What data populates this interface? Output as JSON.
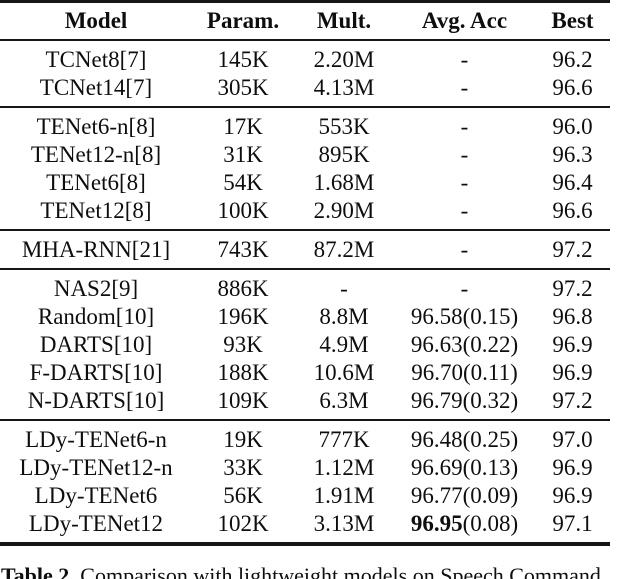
{
  "table": {
    "headers": [
      "Model",
      "Param.",
      "Mult.",
      "Avg. Acc",
      "Best"
    ],
    "groups": [
      {
        "rows": [
          {
            "cells": [
              "TCNet8[7]",
              "145K",
              "2.20M",
              "-",
              "96.2"
            ]
          },
          {
            "cells": [
              "TCNet14[7]",
              "305K",
              "4.13M",
              "-",
              "96.6"
            ]
          }
        ]
      },
      {
        "rows": [
          {
            "cells": [
              "TENet6-n[8]",
              "17K",
              "553K",
              "-",
              "96.0"
            ]
          },
          {
            "cells": [
              "TENet12-n[8]",
              "31K",
              "895K",
              "-",
              "96.3"
            ]
          },
          {
            "cells": [
              "TENet6[8]",
              "54K",
              "1.68M",
              "-",
              "96.4"
            ]
          },
          {
            "cells": [
              "TENet12[8]",
              "100K",
              "2.90M",
              "-",
              "96.6"
            ]
          }
        ]
      },
      {
        "rows": [
          {
            "cells": [
              "MHA-RNN[21]",
              "743K",
              "87.2M",
              "-",
              "97.2"
            ]
          }
        ]
      },
      {
        "rows": [
          {
            "cells": [
              "NAS2[9]",
              "886K",
              "-",
              "-",
              "97.2"
            ]
          },
          {
            "cells": [
              "Random[10]",
              "196K",
              "8.8M",
              "96.58(0.15)",
              "96.8"
            ]
          },
          {
            "cells": [
              "DARTS[10]",
              "93K",
              "4.9M",
              "96.63(0.22)",
              "96.9"
            ]
          },
          {
            "cells": [
              "F-DARTS[10]",
              "188K",
              "10.6M",
              "96.70(0.11)",
              "96.9"
            ]
          },
          {
            "cells": [
              "N-DARTS[10]",
              "109K",
              "6.3M",
              "96.79(0.32)",
              "97.2"
            ]
          }
        ]
      },
      {
        "rows": [
          {
            "cells": [
              "LDy-TENet6-n",
              "19K",
              "777K",
              "96.48(0.25)",
              "97.0"
            ]
          },
          {
            "cells": [
              "LDy-TENet12-n",
              "33K",
              "1.12M",
              "96.69(0.13)",
              "96.9"
            ]
          },
          {
            "cells": [
              "LDy-TENet6",
              "56K",
              "1.91M",
              "96.77(0.09)",
              "96.9"
            ]
          },
          {
            "cells": [
              "LDy-TENet12",
              "102K",
              "3.13M",
              {
                "bold": "96.95",
                "text": "(0.08)"
              },
              "97.1"
            ]
          }
        ]
      }
    ]
  },
  "caption": {
    "label": "Table 2.",
    "text": "Comparison with lightweight models on Speech Command"
  }
}
